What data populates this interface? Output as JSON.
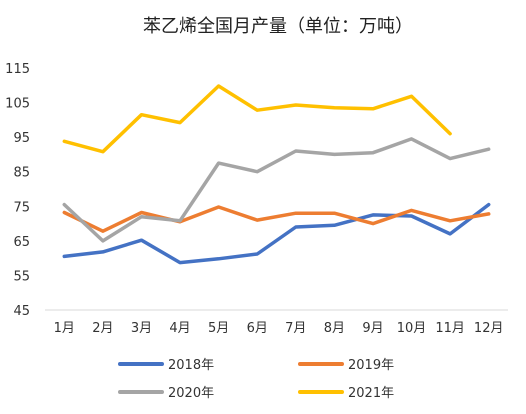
{
  "chart_data": {
    "type": "line",
    "title": "苯乙烯全国月产量（单位：万吨）",
    "xlabel": "",
    "ylabel": "",
    "categories": [
      "1月",
      "2月",
      "3月",
      "4月",
      "5月",
      "6月",
      "7月",
      "8月",
      "9月",
      "10月",
      "11月",
      "12月"
    ],
    "ylim": [
      45,
      115
    ],
    "yticks": [
      45,
      55,
      65,
      75,
      85,
      95,
      105,
      115
    ],
    "grid": false,
    "legend_position": "bottom",
    "series": [
      {
        "name": "2018年",
        "color": "#4472C4",
        "values": [
          60.5,
          61.8,
          65.2,
          58.7,
          59.8,
          61.2,
          69.0,
          69.5,
          72.5,
          72.2,
          67.0,
          75.5
        ]
      },
      {
        "name": "2019年",
        "color": "#ED7D31",
        "values": [
          73.2,
          67.8,
          73.2,
          70.5,
          74.8,
          71.0,
          73.0,
          73.0,
          70.0,
          73.8,
          70.8,
          72.8
        ]
      },
      {
        "name": "2020年",
        "color": "#A5A5A5",
        "values": [
          75.5,
          65.0,
          72.0,
          70.8,
          87.5,
          85.0,
          91.0,
          90.0,
          90.5,
          94.5,
          88.8,
          91.5
        ]
      },
      {
        "name": "2021年",
        "color": "#FFC000",
        "values": [
          93.8,
          90.8,
          101.5,
          99.2,
          109.8,
          102.8,
          104.3,
          103.5,
          103.2,
          106.8,
          96.0,
          null
        ]
      }
    ]
  }
}
